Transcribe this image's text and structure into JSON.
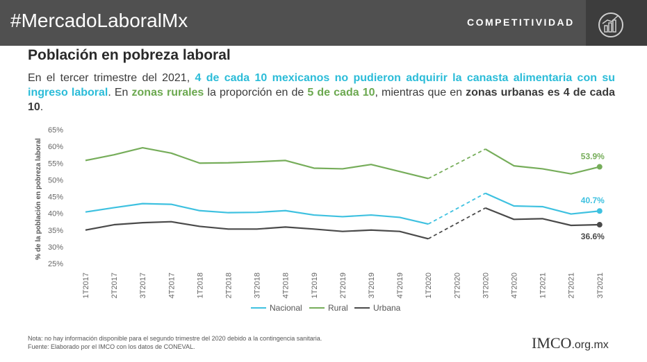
{
  "header": {
    "hashtag": "#MercadoLaboralMx",
    "section": "COMPETITIVIDAD"
  },
  "title": "Población en pobreza laboral",
  "intro": {
    "p1": "En el tercer trimestre del 2021, ",
    "hl1": "4 de cada 10 mexicanos no pudieron adquirir la canasta alimentaria con su ingreso laboral",
    "p2": ". En ",
    "hl2": "zonas rurales",
    "p3": " la proporción en de ",
    "hl3": "5 de cada 10",
    "p4": ", mientras que en ",
    "b1": "zonas urbanas es 4 de cada 10",
    "p5": "."
  },
  "chart_data": {
    "type": "line",
    "ylabel": "% de la población en pobreza laboral",
    "ylim": [
      25,
      65
    ],
    "yticks": [
      "25%",
      "30%",
      "35%",
      "40%",
      "45%",
      "50%",
      "55%",
      "60%",
      "65%"
    ],
    "categories": [
      "1T2017",
      "2T2017",
      "3T2017",
      "4T2017",
      "1T2018",
      "2T2018",
      "3T2018",
      "4T2018",
      "1T2019",
      "2T2019",
      "3T2019",
      "4T2019",
      "1T2020",
      "2T2020",
      "3T2020",
      "4T2020",
      "1T2021",
      "2T2021",
      "3T2021"
    ],
    "missing_category": "2T2020",
    "series": [
      {
        "name": "Nacional",
        "color": "#3ec1e0",
        "values": [
          40.4,
          41.7,
          42.9,
          42.7,
          40.8,
          40.2,
          40.3,
          40.8,
          39.5,
          39.0,
          39.5,
          38.8,
          36.8,
          null,
          46.0,
          42.2,
          42.0,
          39.8,
          40.7
        ],
        "end_label": "40.7%"
      },
      {
        "name": "Rural",
        "color": "#76ad5a",
        "values": [
          55.8,
          57.5,
          59.6,
          58.0,
          55.0,
          55.1,
          55.4,
          55.8,
          53.5,
          53.3,
          54.6,
          52.5,
          50.4,
          null,
          59.2,
          54.2,
          53.3,
          51.8,
          53.9
        ],
        "end_label": "53.9%"
      },
      {
        "name": "Urbana",
        "color": "#4a4a4a",
        "values": [
          35.0,
          36.6,
          37.2,
          37.5,
          36.1,
          35.3,
          35.3,
          35.9,
          35.3,
          34.6,
          35.0,
          34.6,
          32.4,
          null,
          41.6,
          38.2,
          38.4,
          36.4,
          36.6
        ],
        "end_label": "36.6%"
      }
    ]
  },
  "legend": [
    {
      "name": "Nacional",
      "color": "#3ec1e0"
    },
    {
      "name": "Rural",
      "color": "#76ad5a"
    },
    {
      "name": "Urbana",
      "color": "#4a4a4a"
    }
  ],
  "notes": {
    "line1": "Nota: no hay información disponible para el segundo trimestre del 2020 debido a la contingencia sanitaria.",
    "line2": "Fuente: Elaborado por el IMCO con los datos de CONEVAL."
  },
  "brand": {
    "name": "IMCO",
    "domain": ".org.mx",
    "logo_icon": "growth-chart-icon"
  }
}
